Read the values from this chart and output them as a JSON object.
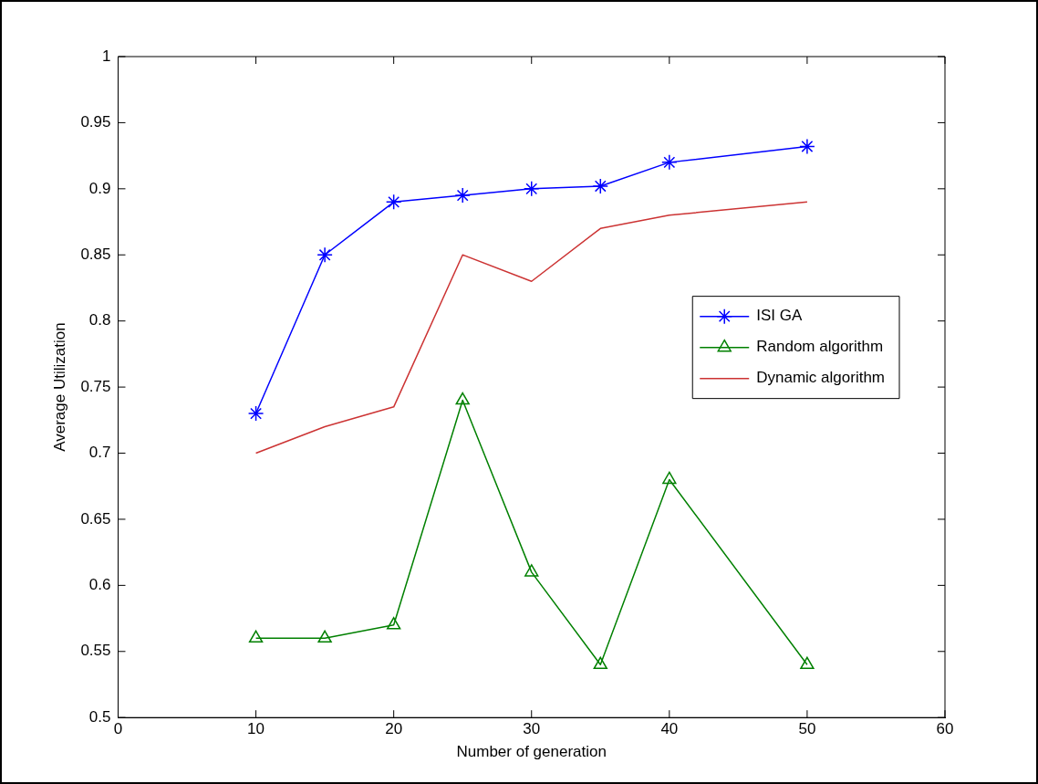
{
  "chart_data": {
    "type": "line",
    "xlabel": "Number of generation",
    "ylabel": "Average Utilization",
    "x": [
      10,
      15,
      20,
      25,
      30,
      35,
      40,
      50
    ],
    "series": [
      {
        "name": "ISI GA",
        "color": "#0000ff",
        "marker": "cross",
        "values": [
          0.73,
          0.85,
          0.89,
          0.895,
          0.9,
          0.902,
          0.92,
          0.932
        ]
      },
      {
        "name": "Random algorithm",
        "color": "#008000",
        "marker": "triangle",
        "values": [
          0.56,
          0.56,
          0.57,
          0.74,
          0.61,
          0.54,
          0.68,
          0.54
        ]
      },
      {
        "name": "Dynamic algorithm",
        "color": "#cc3333",
        "marker": "none",
        "values": [
          0.7,
          0.72,
          0.735,
          0.85,
          0.83,
          0.87,
          0.88,
          0.89
        ]
      }
    ],
    "xlim": [
      0,
      60
    ],
    "xticks": [
      0,
      10,
      20,
      30,
      40,
      50,
      60
    ],
    "ylim": [
      0.5,
      1
    ],
    "yticks": [
      0.5,
      0.55,
      0.6,
      0.65,
      0.7,
      0.75,
      0.8,
      0.85,
      0.9,
      0.95,
      1
    ],
    "grid": false,
    "legend": "right",
    "line_style": "solid"
  }
}
